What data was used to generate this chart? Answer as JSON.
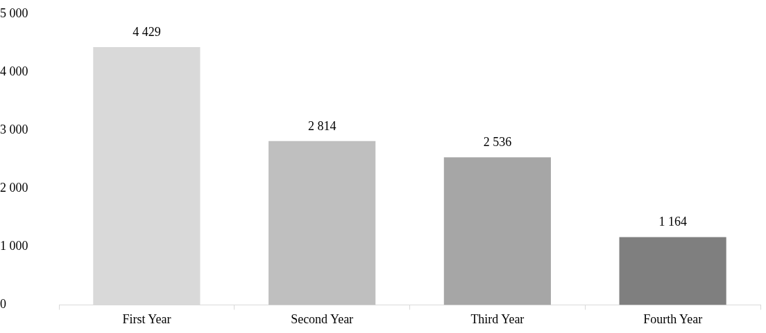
{
  "chart_data": {
    "type": "bar",
    "categories": [
      "First Year",
      "Second Year",
      "Third Year",
      "Fourth Year"
    ],
    "values": [
      4429,
      2814,
      2536,
      1164
    ],
    "colors": [
      "#d9d9d9",
      "#bfbfbf",
      "#a6a6a6",
      "#7f7f7f"
    ],
    "value_labels": [
      "4 429",
      "2 814",
      "2 536",
      "1 164"
    ],
    "ylim": [
      0,
      5000
    ],
    "yticks": [
      {
        "value": 0,
        "label": "0"
      },
      {
        "value": 1000,
        "label": "1 000"
      },
      {
        "value": 2000,
        "label": "2 000"
      },
      {
        "value": 3000,
        "label": "3 000"
      },
      {
        "value": 4000,
        "label": "4 000"
      },
      {
        "value": 5000,
        "label": "5 000"
      }
    ],
    "grid": false,
    "legend": false
  }
}
